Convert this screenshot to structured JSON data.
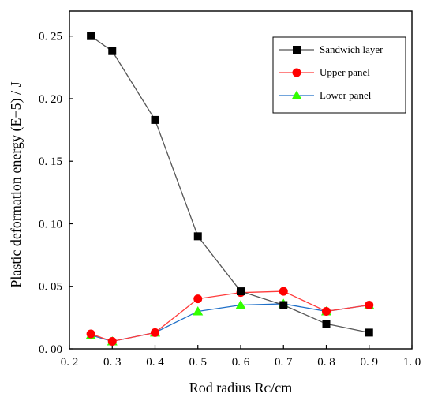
{
  "chart_data": {
    "type": "line",
    "x": [
      0.25,
      0.3,
      0.4,
      0.5,
      0.6,
      0.7,
      0.8,
      0.9
    ],
    "series": [
      {
        "name": "Sandwich layer",
        "values": [
          0.25,
          0.238,
          0.183,
          0.09,
          0.046,
          0.035,
          0.02,
          0.013
        ],
        "color": "#000000",
        "line_color": "#555555",
        "marker": "square"
      },
      {
        "name": "Upper panel",
        "values": [
          0.012,
          0.006,
          0.013,
          0.04,
          0.045,
          0.046,
          0.03,
          0.035
        ],
        "color": "#ff0000",
        "line_color": "#ff3b3b",
        "marker": "circle"
      },
      {
        "name": "Lower panel",
        "values": [
          0.011,
          0.006,
          0.013,
          0.03,
          0.035,
          0.036,
          0.03,
          0.035
        ],
        "color": "#33ff00",
        "line_color": "#1e6fc8",
        "marker": "triangle"
      }
    ],
    "xlim": [
      0.2,
      1.0
    ],
    "ylim": [
      0.0,
      0.27
    ],
    "x_ticks": [
      {
        "value": 0.2,
        "label": "0. 2"
      },
      {
        "value": 0.3,
        "label": "0. 3"
      },
      {
        "value": 0.4,
        "label": "0. 4"
      },
      {
        "value": 0.5,
        "label": "0. 5"
      },
      {
        "value": 0.6,
        "label": "0. 6"
      },
      {
        "value": 0.7,
        "label": "0. 7"
      },
      {
        "value": 0.8,
        "label": "0. 8"
      },
      {
        "value": 0.9,
        "label": "0. 9"
      },
      {
        "value": 1.0,
        "label": "1. 0"
      }
    ],
    "y_ticks": [
      {
        "value": 0.0,
        "label": "0. 00"
      },
      {
        "value": 0.05,
        "label": "0. 05"
      },
      {
        "value": 0.1,
        "label": "0. 10"
      },
      {
        "value": 0.15,
        "label": "0. 15"
      },
      {
        "value": 0.2,
        "label": "0. 20"
      },
      {
        "value": 0.25,
        "label": "0. 25"
      }
    ],
    "xlabel": "Rod radius Rᴄ/cm",
    "ylabel": "Plastic deformation energy (E+5) / J",
    "grid": false,
    "legend_position": "top-right"
  }
}
